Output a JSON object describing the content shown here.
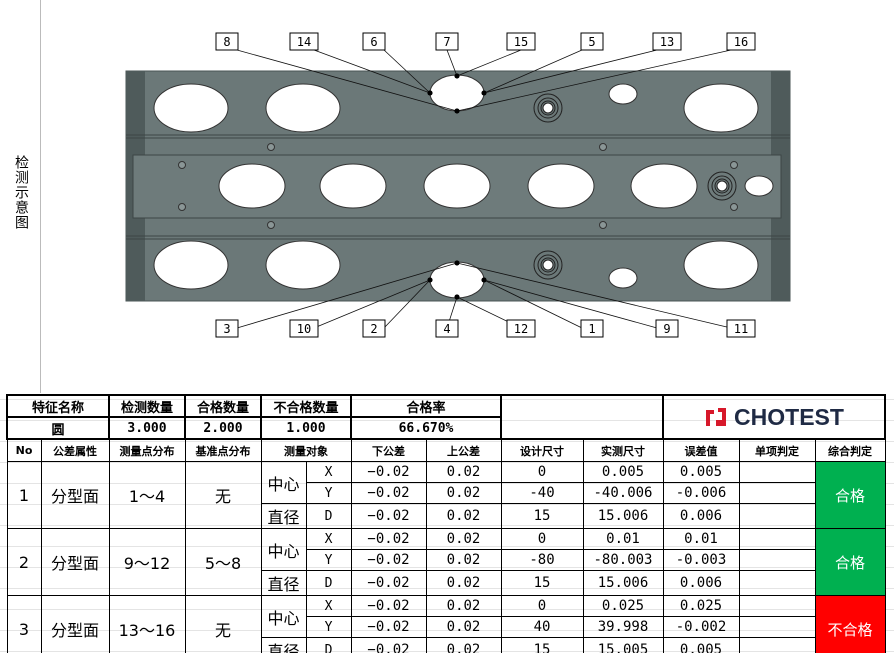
{
  "side_label": "检测示意图",
  "callouts": {
    "top": [
      "8",
      "14",
      "6",
      "7",
      "15",
      "5",
      "13",
      "16"
    ],
    "bottom": [
      "3",
      "10",
      "2",
      "4",
      "12",
      "1",
      "9",
      "11"
    ]
  },
  "summary": {
    "headers": [
      "特征名称",
      "检测数量",
      "合格数量",
      "不合格数量",
      "合格率"
    ],
    "values": [
      "圆",
      "3.000",
      "2.000",
      "1.000",
      "66.670%"
    ]
  },
  "logo": {
    "text": "CHOTEST",
    "color": "#d7182a"
  },
  "columns": [
    "No",
    "公差属性",
    "测量点分布",
    "基准点分布",
    "测量对象",
    "下公差",
    "上公差",
    "设计尺寸",
    "实测尺寸",
    "误差值",
    "单项判定",
    "综合判定"
  ],
  "rows": [
    {
      "no": "1",
      "attr": "分型面",
      "points": "1～4",
      "datum": "无",
      "result": "合格",
      "status": "pass",
      "items": [
        {
          "group": "中心",
          "axis": "X",
          "low": "−0.02",
          "up": "0.02",
          "design": "0",
          "actual": "0.005",
          "err": "0.005",
          "single": ""
        },
        {
          "group": "中心",
          "axis": "Y",
          "low": "−0.02",
          "up": "0.02",
          "design": "-40",
          "actual": "-40.006",
          "err": "-0.006",
          "single": ""
        },
        {
          "group": "直径",
          "axis": "D",
          "low": "−0.02",
          "up": "0.02",
          "design": "15",
          "actual": "15.006",
          "err": "0.006",
          "single": ""
        }
      ]
    },
    {
      "no": "2",
      "attr": "分型面",
      "points": "9～12",
      "datum": "5～8",
      "result": "合格",
      "status": "pass",
      "items": [
        {
          "group": "中心",
          "axis": "X",
          "low": "−0.02",
          "up": "0.02",
          "design": "0",
          "actual": "0.01",
          "err": "0.01",
          "single": ""
        },
        {
          "group": "中心",
          "axis": "Y",
          "low": "−0.02",
          "up": "0.02",
          "design": "-80",
          "actual": "-80.003",
          "err": "-0.003",
          "single": ""
        },
        {
          "group": "直径",
          "axis": "D",
          "low": "−0.02",
          "up": "0.02",
          "design": "15",
          "actual": "15.006",
          "err": "0.006",
          "single": ""
        }
      ]
    },
    {
      "no": "3",
      "attr": "分型面",
      "points": "13～16",
      "datum": "无",
      "result": "不合格",
      "status": "fail",
      "items": [
        {
          "group": "中心",
          "axis": "X",
          "low": "−0.02",
          "up": "0.02",
          "design": "0",
          "actual": "0.025",
          "err": "0.025",
          "single": ""
        },
        {
          "group": "中心",
          "axis": "Y",
          "low": "−0.02",
          "up": "0.02",
          "design": "40",
          "actual": "39.998",
          "err": "-0.002",
          "single": ""
        },
        {
          "group": "直径",
          "axis": "D",
          "low": "−0.02",
          "up": "0.02",
          "design": "15",
          "actual": "15.005",
          "err": "0.005",
          "single": ""
        }
      ]
    }
  ],
  "colors": {
    "pass": "#00b050",
    "fail": "#ff0000",
    "plate": "#6b7878"
  }
}
